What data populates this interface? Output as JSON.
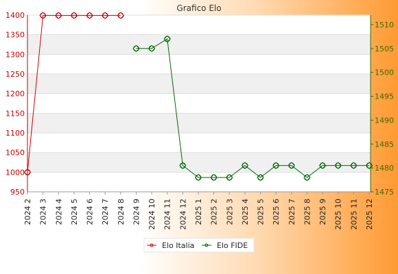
{
  "chart_data": {
    "type": "line",
    "title": "Grafico Elo",
    "categories": [
      "2024 2",
      "2024 3",
      "2024 4",
      "2024 5",
      "2024 6",
      "2024 7",
      "2024 8",
      "2024 9",
      "2024 10",
      "2024 11",
      "2024 12",
      "2025 1",
      "2025 2",
      "2025 3",
      "2025 4",
      "2025 5",
      "2025 6",
      "2025 7",
      "2025 8",
      "2025 9",
      "2025 10",
      "2025 11",
      "2025 12"
    ],
    "y_left": {
      "ylim": [
        950,
        1400
      ],
      "ticks": [
        950,
        1000,
        1050,
        1100,
        1150,
        1200,
        1250,
        1300,
        1350,
        1400
      ],
      "color": "#c00000"
    },
    "y_right": {
      "ylim": [
        1475,
        1512
      ],
      "ticks": [
        1475,
        1480,
        1485,
        1490,
        1495,
        1500,
        1505,
        1510
      ],
      "color": "#3a6a00"
    },
    "series": [
      {
        "name": "Elo Italia",
        "axis": "left",
        "color": "#cc0000",
        "values": [
          1000,
          1399,
          1399,
          1399,
          1399,
          1399,
          1399,
          null,
          null,
          null,
          null,
          null,
          null,
          null,
          null,
          null,
          null,
          null,
          null,
          null,
          null,
          null,
          null
        ]
      },
      {
        "name": "Elo FIDE",
        "axis": "right",
        "color": "#006600",
        "values": [
          null,
          null,
          null,
          null,
          null,
          null,
          null,
          1505,
          1505,
          1507,
          1480.5,
          1478,
          1478,
          1478,
          1480.5,
          1478,
          1480.5,
          1480.5,
          1478,
          1480.5,
          1480.5,
          1480.5,
          1480.5
        ]
      }
    ],
    "grid": true,
    "legend": "bottom-center"
  }
}
